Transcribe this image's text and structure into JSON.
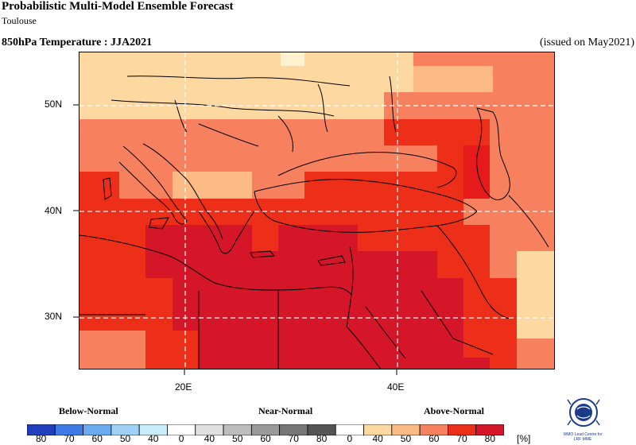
{
  "header": {
    "title": "Probabilistic Multi-Model Ensemble Forecast",
    "subtitle": "Toulouse",
    "field": "850hPa Temperature : JJA2021",
    "issued": "(issued on May2021)"
  },
  "map": {
    "extent": {
      "lon": [
        10,
        55
      ],
      "lat": [
        25,
        55
      ]
    },
    "lat_labels": [
      "50N",
      "40N",
      "30N"
    ],
    "lon_labels": [
      "20E",
      "40E"
    ],
    "gridlines": {
      "lat": [
        30,
        40,
        50
      ],
      "lon": [
        20,
        40
      ],
      "style": "dashed"
    },
    "category_colors": {
      "above_40": "#fdd8a0",
      "above_50": "#fcbb84",
      "above_60": "#f7815e",
      "above_70": "#ed2e18",
      "above_80": "#d51528"
    }
  },
  "legend": {
    "below_label": "Below-Normal",
    "near_label": "Near-Normal",
    "above_label": "Above-Normal",
    "unit": "[%]",
    "tick_labels": [
      "80",
      "70",
      "60",
      "50",
      "40",
      "0",
      "40",
      "50",
      "60",
      "70",
      "80",
      "0",
      "40",
      "50",
      "60",
      "70",
      "80"
    ],
    "below_colors": [
      "#1f3fbf",
      "#3d7ae6",
      "#6aaaf0",
      "#9fd1f6",
      "#c9edfa"
    ],
    "near_colors": [
      "#ffffff",
      "#e0e0e0",
      "#bdbdbd",
      "#9a9a9a",
      "#777777",
      "#555555"
    ],
    "above_colors": [
      "#ffffff",
      "#fdd8a0",
      "#fcbb84",
      "#f7815e",
      "#ed2e18",
      "#d51528"
    ]
  },
  "logo": {
    "caption_line1": "WMO Lead Centre for",
    "caption_line2": "LRF MME"
  }
}
